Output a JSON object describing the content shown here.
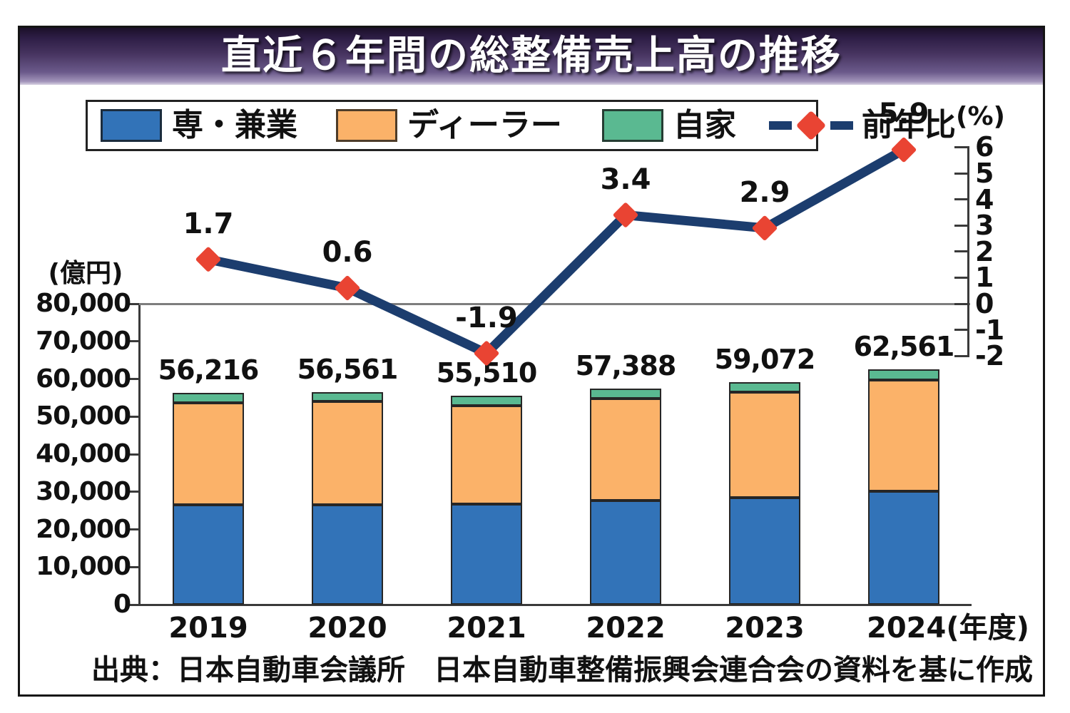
{
  "title": "直近６年間の総整備売上高の推移",
  "source": "出典：日本自動車会議所　日本自動車整備振興会連合会の資料を基に作成",
  "colors": {
    "bar_blue": "#3273b8",
    "bar_orange": "#fbb269",
    "bar_green": "#5ab991",
    "line_navy": "#1c3d6e",
    "marker_red": "#e94433",
    "banner_purple_dark": "#2e1e46",
    "banner_purple_light": "#a294ba",
    "bar_outline": "#262626",
    "axis": "#3a3a3a",
    "zero_gridline": "#7d7d7d"
  },
  "legend": {
    "items": [
      {
        "label": "専・兼業",
        "color": "#3273b8",
        "type": "bar"
      },
      {
        "label": "ディーラー",
        "color": "#fbb269",
        "type": "bar"
      },
      {
        "label": "自家",
        "color": "#5ab991",
        "type": "bar"
      },
      {
        "label": "前年比",
        "color": "#1c3d6e",
        "marker_color": "#e94433",
        "type": "line"
      }
    ]
  },
  "chart_data": {
    "type": "bar",
    "subtype": "stacked-bar-with-line",
    "categories": [
      "2019",
      "2020",
      "2021",
      "2022",
      "2023",
      "2024"
    ],
    "x_axis_suffix": "(年度)",
    "bar_series": [
      {
        "name": "専・兼業",
        "color": "#3273b8",
        "values_estimated": true,
        "values": [
          26500,
          26500,
          26700,
          27600,
          28400,
          30100
        ]
      },
      {
        "name": "ディーラー",
        "color": "#fbb269",
        "values_estimated": true,
        "values": [
          27216,
          27561,
          26260,
          27138,
          28072,
          29611
        ]
      },
      {
        "name": "自家",
        "color": "#5ab991",
        "values_estimated": true,
        "values": [
          2500,
          2500,
          2550,
          2650,
          2600,
          2850
        ]
      }
    ],
    "bar_totals": [
      56216,
      56561,
      55510,
      57388,
      59072,
      62561
    ],
    "bar_total_labels": [
      "56,216",
      "56,561",
      "55,510",
      "57,388",
      "59,072",
      "62,561"
    ],
    "line_series": {
      "name": "前年比",
      "color": "#1c3d6e",
      "marker": "diamond",
      "marker_color": "#e94433",
      "values": [
        1.7,
        0.6,
        -1.9,
        3.4,
        2.9,
        5.9
      ],
      "labels": [
        "1.7",
        "0.6",
        "-1.9",
        "3.4",
        "2.9",
        "5.9"
      ]
    },
    "left_axis": {
      "title": "(億円)",
      "min": 0,
      "max": 80000,
      "tick_values": [
        80000,
        70000,
        60000,
        50000,
        40000,
        30000,
        20000,
        10000,
        0
      ],
      "tick_labels": [
        "80,000",
        "70,000",
        "60,000",
        "50,000",
        "40,000",
        "30,000",
        "20,000",
        "10,000",
        "0"
      ]
    },
    "right_axis": {
      "title": "(%)",
      "min": -2,
      "max": 6,
      "tick_values": [
        6,
        5,
        4,
        3,
        2,
        1,
        0,
        -1,
        -2
      ],
      "tick_labels": [
        "6",
        "5",
        "4",
        "3",
        "2",
        "1",
        "0",
        "-1",
        "-2"
      ]
    },
    "grid": "zero-percent line only",
    "legend_position": "top"
  }
}
